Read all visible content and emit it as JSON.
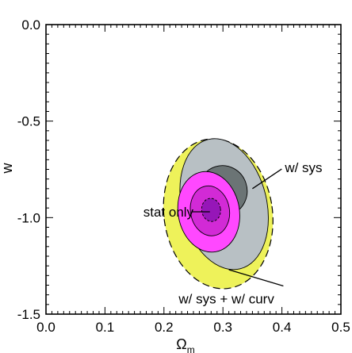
{
  "chart_data": {
    "type": "contour",
    "xlabel": "Ω",
    "xlabel_sub": "m",
    "ylabel": "w",
    "xlim": [
      0.0,
      0.5
    ],
    "ylim": [
      -1.5,
      0.0
    ],
    "x_ticks": [
      0.0,
      0.1,
      0.2,
      0.3,
      0.4,
      0.5
    ],
    "x_tick_labels": [
      "0.0",
      "0.1",
      "0.2",
      "0.3",
      "0.4",
      "0.5"
    ],
    "y_ticks": [
      0.0,
      -0.5,
      -1.0,
      -1.5
    ],
    "y_tick_labels": [
      "0.0",
      "-0.5",
      "-1.0",
      "-1.5"
    ],
    "grid": false,
    "colors": {
      "sys_curv": "#eef25a",
      "sys_outer": "#b8c0c4",
      "sys_inner": "#6b7475",
      "stat_outer": "#ff48ff",
      "stat_mid": "#d22ad6",
      "stat_core": "#9616b8"
    },
    "contours": [
      {
        "name": "w/ sys + w/ curv",
        "level": "outer",
        "center": [
          0.292,
          -0.98
        ],
        "semi_axes": [
          0.092,
          0.39
        ],
        "tilt_deg": -8,
        "color": "#eef25a",
        "dashed": true
      },
      {
        "name": "w/ sys",
        "level": "outer",
        "center": [
          0.302,
          -0.93
        ],
        "semi_axes": [
          0.072,
          0.345
        ],
        "tilt_deg": -14,
        "color": "#b8c0c4",
        "dashed": false
      },
      {
        "name": "w/ sys",
        "level": "inner",
        "center": [
          0.3,
          -0.86
        ],
        "semi_axes": [
          0.041,
          0.13
        ],
        "tilt_deg": -18,
        "color": "#6b7475",
        "dashed": false
      },
      {
        "name": "stat only",
        "level": "outer",
        "center": [
          0.276,
          -0.97
        ],
        "semi_axes": [
          0.052,
          0.21
        ],
        "tilt_deg": -10,
        "color": "#ff48ff",
        "dashed": false
      },
      {
        "name": "stat only",
        "level": "middle",
        "center": [
          0.278,
          -0.965
        ],
        "semi_axes": [
          0.033,
          0.13
        ],
        "tilt_deg": -10,
        "color": "#d22ad6",
        "dashed": false
      },
      {
        "name": "stat only",
        "level": "core",
        "center": [
          0.28,
          -0.96
        ],
        "semi_axes": [
          0.016,
          0.06
        ],
        "tilt_deg": -8,
        "color": "#9616b8",
        "dashed": false
      }
    ],
    "annotations": [
      {
        "text": "w/ sys",
        "points_to": [
          0.35,
          -0.85
        ],
        "label_at": [
          0.405,
          -0.74
        ]
      },
      {
        "text": "stat only",
        "points_to": [
          0.248,
          -0.97
        ],
        "label_at": [
          0.165,
          -0.97
        ]
      },
      {
        "text": "w/ sys + w/ curv",
        "points_to": [
          0.31,
          -1.27
        ],
        "label_at": [
          0.225,
          -1.42
        ]
      }
    ]
  }
}
